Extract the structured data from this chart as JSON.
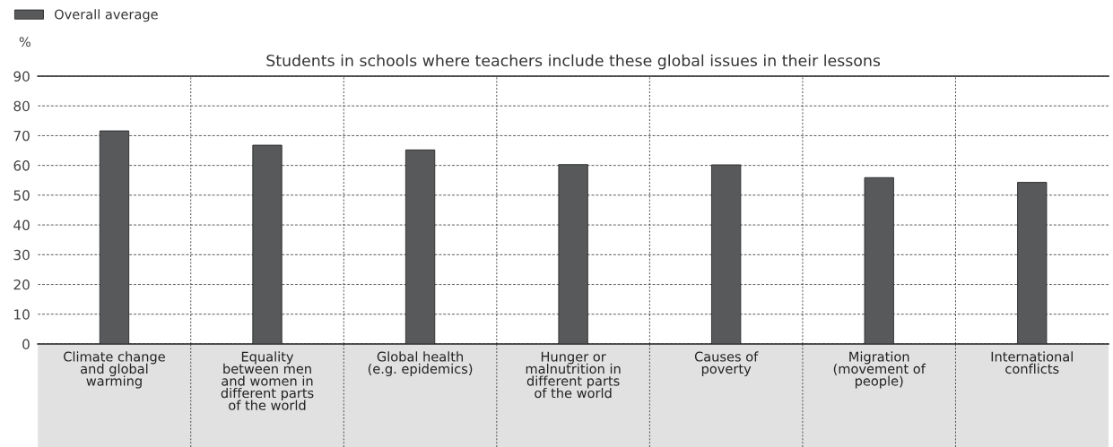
{
  "chart_data": {
    "type": "bar",
    "title": "Students in schools where teachers include these global issues in their lessons",
    "ylabel": "%",
    "categories": [
      "Climate change\nand global\nwarming",
      "Equality\nbetween men\nand women in\ndifferent parts\nof the world",
      "Global health\n(e.g. epidemics)",
      "Hunger or\nmalnutrition in\ndifferent parts\nof the world",
      "Causes of\npoverty",
      "Migration\n(movement of\npeople)",
      "International\nconflicts"
    ],
    "series": [
      {
        "name": "Overall average",
        "color": "#58595b",
        "values": [
          71.6,
          66.8,
          65.2,
          60.3,
          60.2,
          55.9,
          54.3
        ]
      }
    ],
    "ylim": [
      0,
      90
    ],
    "yticks": [
      0,
      10,
      20,
      30,
      40,
      50,
      60,
      70,
      80,
      90
    ],
    "grid": true,
    "legend": "top left"
  }
}
